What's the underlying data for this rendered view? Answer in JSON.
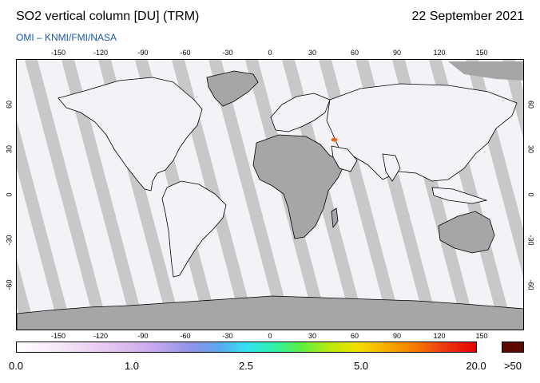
{
  "header": {
    "title": "SO2 vertical column [DU] (TRM)",
    "date": "22 September 2021",
    "credit": "OMI  –  KNMI/FMI/NASA"
  },
  "map": {
    "projection": "equirectangular",
    "lon_range": [
      -180,
      180
    ],
    "lat_range": [
      -90,
      90
    ],
    "lon_ticks": [
      "-150",
      "-120",
      "-90",
      "-60",
      "-30",
      "0",
      "30",
      "60",
      "90",
      "120",
      "150"
    ],
    "lat_ticks": [
      "60",
      "30",
      "0",
      "-30",
      "-60"
    ],
    "colors": {
      "background": "#f4f2f6",
      "swath_gap": "#c8c8c8",
      "land_no_data": "#a6a6a6",
      "coastline": "#000000",
      "so2_hotspot": "#e86a20"
    },
    "hotspot": {
      "lon": 45,
      "lat": 37
    }
  },
  "colorbar": {
    "labels": [
      "0.0",
      "1.0",
      "2.5",
      "5.0",
      "20.0"
    ],
    "overflow_label": ">50",
    "overflow_color": "#5c0a00"
  }
}
